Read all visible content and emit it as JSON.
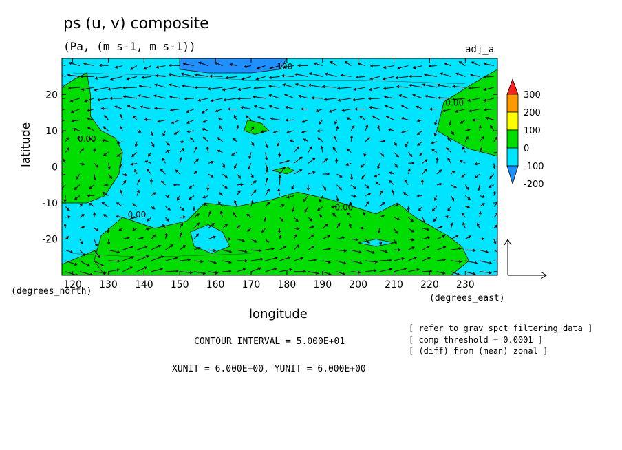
{
  "header": {
    "title": "ps (u, v) composite",
    "units": "(Pa, (m s-1, m s-1))",
    "model_label": "adj_a"
  },
  "axes": {
    "xlabel": "longitude",
    "ylabel": "latitude",
    "x_units": "(degrees_east)",
    "y_units": "(degrees_north)"
  },
  "footer": {
    "contour_interval": "CONTOUR INTERVAL = 5.000E+01",
    "xy_unit": "XUNIT = 6.000E+00, YUNIT = 6.000E+00",
    "notes": [
      "[ refer to grav spct filtering data ]",
      "[ comp threshold = 0.0001 ]",
      "[ (diff) from (mean) zonal ]"
    ]
  },
  "colors": {
    "neg200": "#1e90ff",
    "neg100": "#00e5ff",
    "zero": "#00dd00",
    "pos100": "#ffff00",
    "pos200": "#ff9900",
    "pos300": "#ff2020"
  },
  "chart_data": {
    "type": "heatmap",
    "title": "ps (u, v) composite",
    "xlabel": "longitude",
    "ylabel": "latitude",
    "xlim": [
      117,
      239
    ],
    "ylim": [
      -30,
      30
    ],
    "xticks": [
      120,
      130,
      140,
      150,
      160,
      170,
      180,
      190,
      200,
      210,
      220,
      230
    ],
    "yticks": [
      20,
      10,
      0,
      -10,
      -20
    ],
    "contour_interval": 50,
    "colorbar": {
      "levels": [
        300,
        200,
        100,
        0,
        -100,
        -200
      ],
      "colors": [
        "#ff2020",
        "#ff9900",
        "#ffff00",
        "#00dd00",
        "#00e5ff",
        "#1e90ff"
      ]
    },
    "contour_labels": [
      {
        "text": "-100",
        "lon": 179,
        "lat": 27
      },
      {
        "text": "0.00",
        "lon": 124,
        "lat": 7
      },
      {
        "text": "0.00",
        "lon": 138,
        "lat": -14
      },
      {
        "text": "0.00",
        "lon": 196,
        "lat": -12
      },
      {
        "text": "0.00",
        "lon": 227,
        "lat": 17
      }
    ],
    "regions": [
      {
        "level": 0,
        "color": "#00dd00",
        "points": [
          [
            117,
            22
          ],
          [
            120,
            24
          ],
          [
            124,
            26
          ],
          [
            125,
            20
          ],
          [
            125,
            14
          ],
          [
            128,
            10
          ],
          [
            132,
            8
          ],
          [
            134,
            4
          ],
          [
            133,
            -2
          ],
          [
            129,
            -8
          ],
          [
            124,
            -10
          ],
          [
            117,
            -10
          ]
        ]
      },
      {
        "level": 0,
        "color": "#00dd00",
        "points": [
          [
            117,
            -27
          ],
          [
            129,
            -22
          ],
          [
            136,
            -22
          ],
          [
            140,
            -16
          ],
          [
            147,
            -21
          ],
          [
            160,
            -18
          ],
          [
            163,
            -24
          ],
          [
            166,
            -30
          ],
          [
            117,
            -30
          ]
        ]
      },
      {
        "level": 0,
        "color": "#00dd00",
        "points": [
          [
            129,
            -30
          ],
          [
            126,
            -26
          ],
          [
            128,
            -19
          ],
          [
            134,
            -14
          ],
          [
            143,
            -17
          ],
          [
            152,
            -15
          ],
          [
            157,
            -10
          ],
          [
            166,
            -11
          ],
          [
            176,
            -9
          ],
          [
            183,
            -7
          ],
          [
            192,
            -9
          ],
          [
            205,
            -13
          ],
          [
            211,
            -10
          ],
          [
            216,
            -14
          ],
          [
            225,
            -19
          ],
          [
            229,
            -22
          ],
          [
            231,
            -26
          ],
          [
            226,
            -30
          ]
        ]
      },
      {
        "level": 0,
        "color": "#00e5ff",
        "points": [
          [
            153,
            -18
          ],
          [
            158,
            -16
          ],
          [
            162,
            -18
          ],
          [
            164,
            -22
          ],
          [
            159,
            -24
          ],
          [
            154,
            -22
          ]
        ]
      },
      {
        "level": 0,
        "color": "#00e5ff",
        "points": [
          [
            200,
            -21
          ],
          [
            205,
            -20
          ],
          [
            210,
            -21
          ],
          [
            205,
            -22
          ]
        ]
      },
      {
        "level": 0,
        "color": "#00dd00",
        "points": [
          [
            224,
            18
          ],
          [
            232,
            23
          ],
          [
            239,
            27
          ],
          [
            239,
            3
          ],
          [
            231,
            5
          ],
          [
            222,
            10
          ]
        ]
      },
      {
        "level": 0,
        "color": "#00dd00",
        "points": [
          [
            169,
            13
          ],
          [
            173,
            12
          ],
          [
            175,
            10
          ],
          [
            171,
            9
          ],
          [
            168,
            10
          ]
        ]
      },
      {
        "level": 0,
        "color": "#00dd00",
        "points": [
          [
            176,
            -1
          ],
          [
            180,
            -2
          ],
          [
            182,
            -1
          ],
          [
            180,
            0
          ]
        ]
      },
      {
        "level": -200,
        "color": "#1e90ff",
        "points": [
          [
            150,
            30
          ],
          [
            150,
            27
          ],
          [
            158,
            26
          ],
          [
            170,
            26
          ],
          [
            178,
            27
          ],
          [
            180,
            30
          ]
        ]
      }
    ],
    "contour_lines": [
      [
        [
          120,
          26
        ],
        [
          140,
          25.5
        ],
        [
          170,
          24
        ],
        [
          200,
          24
        ],
        [
          230,
          23
        ]
      ],
      [
        [
          120,
          -24
        ],
        [
          140,
          -25
        ],
        [
          170,
          -24
        ]
      ]
    ],
    "vectors": {
      "lon_step": 4,
      "lat_step": 3,
      "reference_vector": "XUNIT = 6.000E+00, YUNIT = 6.000E+00",
      "vortices": [
        {
          "lon": 178,
          "lat": 3,
          "sign": 1
        },
        {
          "lon": 181,
          "lat": -5,
          "sign": -1
        },
        {
          "lon": 130,
          "lat": -22,
          "sign": 1
        }
      ],
      "jets": [
        {
          "lat": 22,
          "u": -2.5
        },
        {
          "lat": -28,
          "u": 2.0
        }
      ]
    }
  }
}
